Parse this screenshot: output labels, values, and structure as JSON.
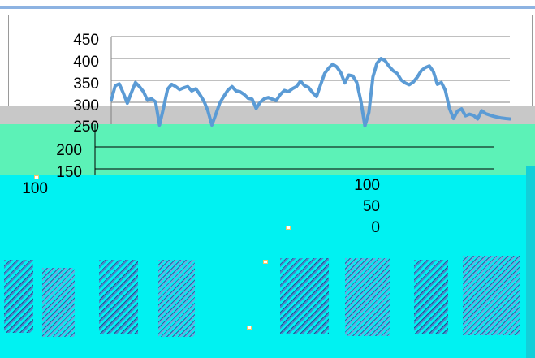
{
  "chart_data": {
    "type": "line",
    "x": [
      1,
      2,
      3,
      4,
      5,
      6,
      7,
      8,
      9,
      10,
      11,
      12,
      13,
      14,
      15,
      16,
      17,
      18,
      19,
      20,
      21,
      22,
      23,
      24,
      25,
      26,
      27,
      28,
      29,
      30,
      31,
      32,
      33,
      34,
      35,
      36,
      37,
      38,
      39,
      40,
      41,
      42,
      43,
      44,
      45,
      46,
      47,
      48,
      49,
      50,
      51,
      52,
      53,
      54,
      55,
      56,
      57,
      58,
      59,
      60,
      61,
      62,
      63,
      64,
      65,
      66,
      67,
      68,
      69,
      70,
      71,
      72,
      73,
      74,
      75,
      76,
      77,
      78,
      79,
      80,
      81,
      82,
      83,
      84,
      85,
      86,
      87,
      88,
      89,
      90,
      91,
      92,
      93,
      94,
      95,
      96,
      97,
      98,
      99,
      100
    ],
    "values": [
      305,
      338,
      342,
      321,
      298,
      322,
      345,
      336,
      324,
      305,
      308,
      301,
      248,
      288,
      330,
      341,
      336,
      329,
      333,
      336,
      326,
      331,
      318,
      303,
      281,
      248,
      273,
      299,
      314,
      328,
      336,
      326,
      324,
      318,
      309,
      307,
      286,
      300,
      308,
      311,
      307,
      304,
      318,
      327,
      324,
      331,
      336,
      348,
      338,
      334,
      322,
      313,
      340,
      366,
      378,
      387,
      381,
      368,
      344,
      362,
      360,
      345,
      303,
      246,
      277,
      358,
      389,
      400,
      395,
      382,
      372,
      366,
      351,
      344,
      340,
      346,
      357,
      372,
      379,
      383,
      370,
      341,
      345,
      327,
      286,
      263,
      280,
      285,
      269,
      273,
      270,
      262,
      281,
      274,
      271,
      268,
      266,
      264,
      263,
      262
    ],
    "xlabel": "",
    "ylabel": "",
    "ylim": [
      150,
      450
    ],
    "series": [
      {
        "name": "",
        "values": [
          305,
          338,
          342,
          321,
          298,
          322,
          345,
          336,
          324,
          305,
          308,
          301,
          248,
          288,
          330,
          341,
          336,
          329,
          333,
          336,
          326,
          331,
          318,
          303,
          281,
          248,
          273,
          299,
          314,
          328,
          336,
          326,
          324,
          318,
          309,
          307,
          286,
          300,
          308,
          311,
          307,
          304,
          318,
          327,
          324,
          331,
          336,
          348,
          338,
          334,
          322,
          313,
          340,
          366,
          378,
          387,
          381,
          368,
          344,
          362,
          360,
          345,
          303,
          246,
          277,
          358,
          389,
          400,
          395,
          382,
          372,
          366,
          351,
          344,
          340,
          346,
          357,
          372,
          379,
          383,
          370,
          341,
          345,
          327,
          286,
          263,
          280,
          285,
          269,
          273,
          270,
          262,
          281,
          274,
          271,
          268,
          266,
          264,
          263,
          262
        ]
      }
    ],
    "axis_ticks_upper": [
      "450",
      "400",
      "350",
      "300",
      "250"
    ],
    "axis_ticks_lower": [
      "200",
      "150",
      "100"
    ],
    "axis_ticks_right": [
      "100",
      "50",
      "0"
    ],
    "series_color": "#5b9bd5",
    "grid": true
  },
  "colors": {
    "top_rule": "#8db3e2",
    "frame": "#9a9a9a",
    "gray_band": "#c8c8c8",
    "green_band": "#5cf2b7",
    "cyan_band": "#00f2f2",
    "dark_blue": "#1d4c8f"
  }
}
